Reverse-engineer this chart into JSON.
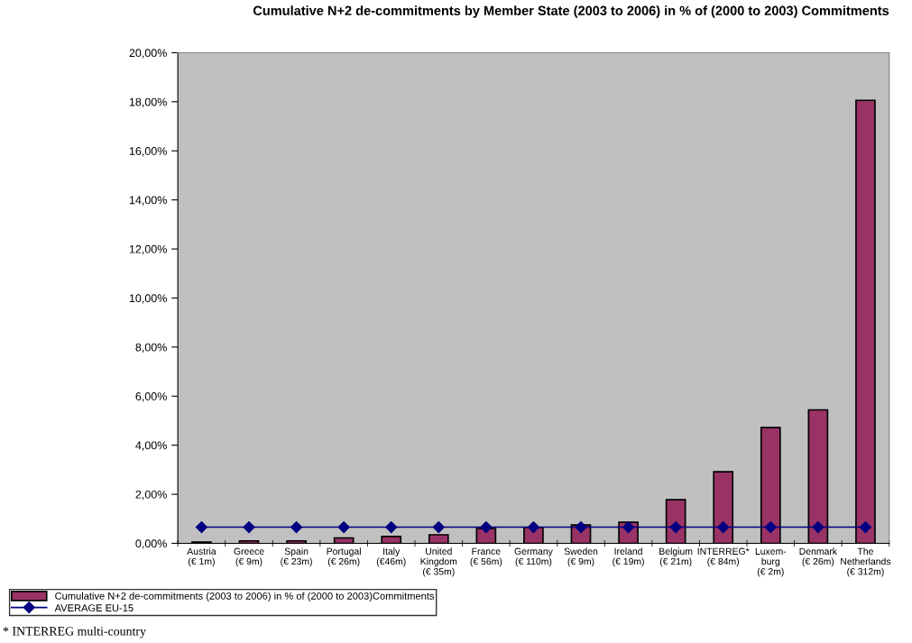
{
  "chart_data": {
    "type": "bar",
    "title": "Cumulative N+2 de-commitments by Member State (2003 to 2006) in % of (2000 to 2003) Commitments",
    "categories": [
      "Austria\n(€ 1m)",
      "Greece\n(€ 9m)",
      "Spain\n(€ 23m)",
      "Portugal\n(€ 26m)",
      "Italy\n(€46m)",
      "United\nKingdom\n(€ 35m)",
      "France\n(€ 56m)",
      "Germany\n(€ 110m)",
      "Sweden\n(€ 9m)",
      "Ireland\n(€ 19m)",
      "Belgium\n(€ 21m)",
      "INTERREG*\n(€ 84m)",
      "Luxem-\nburg\n(€ 2m)",
      "Denmark\n(€ 26m)",
      "The\nNetherlands\n(€ 312m)"
    ],
    "series": [
      {
        "name": "Cumulative N+2 de-commitments (2003 to 2006) in % of (2000 to 2003)Commitments",
        "color": "#993366",
        "values": [
          0.05,
          0.1,
          0.1,
          0.22,
          0.28,
          0.35,
          0.6,
          0.65,
          0.75,
          0.86,
          1.78,
          2.92,
          4.72,
          5.44,
          18.06
        ]
      },
      {
        "name": "AVERAGE EU-15",
        "type": "line",
        "color": "#000080",
        "marker": "diamond",
        "values": [
          0.66,
          0.66,
          0.66,
          0.66,
          0.66,
          0.66,
          0.66,
          0.66,
          0.66,
          0.66,
          0.66,
          0.66,
          0.66,
          0.66,
          0.66
        ]
      }
    ],
    "ylim": [
      0,
      20
    ],
    "yticks": [
      {
        "value": 0,
        "label": "0,00%"
      },
      {
        "value": 2,
        "label": "2,00%"
      },
      {
        "value": 4,
        "label": "4,00%"
      },
      {
        "value": 6,
        "label": "6,00%"
      },
      {
        "value": 8,
        "label": "8,00%"
      },
      {
        "value": 10,
        "label": "10,00%"
      },
      {
        "value": 12,
        "label": "12,00%"
      },
      {
        "value": 14,
        "label": "14,00%"
      },
      {
        "value": 16,
        "label": "16,00%"
      },
      {
        "value": 18,
        "label": "18,00%"
      },
      {
        "value": 20,
        "label": "20,00%"
      }
    ],
    "grid": false,
    "legend": "bottom left",
    "annotations": [
      "* INTERREG multi-country"
    ]
  }
}
